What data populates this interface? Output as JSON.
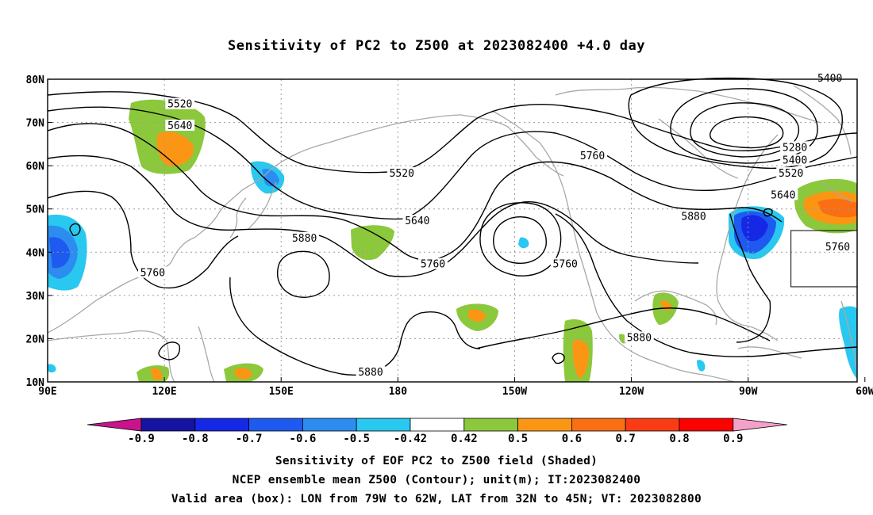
{
  "title": "Sensitivity of PC2 to Z500 at 2023082400 +4.0 day",
  "map": {
    "lon_range": [
      90,
      298
    ],
    "lat_range": [
      10,
      80
    ],
    "lat_labels": [
      "10N",
      "20N",
      "30N",
      "40N",
      "50N",
      "60N",
      "70N",
      "80N"
    ],
    "lon_labels": [
      "90E",
      "120E",
      "150E",
      "180",
      "150W",
      "120W",
      "90W",
      "60W"
    ],
    "contour_labels": [
      {
        "text": "5520",
        "lon": 124,
        "lat": 74
      },
      {
        "text": "5640",
        "lon": 124,
        "lat": 69
      },
      {
        "text": "5520",
        "lon": 181,
        "lat": 58
      },
      {
        "text": "5760",
        "lon": 230,
        "lat": 62
      },
      {
        "text": "5640",
        "lon": 185,
        "lat": 47
      },
      {
        "text": "5880",
        "lon": 156,
        "lat": 43
      },
      {
        "text": "5760",
        "lon": 189,
        "lat": 37
      },
      {
        "text": "5760",
        "lon": 223,
        "lat": 37
      },
      {
        "text": "5880",
        "lon": 256,
        "lat": 48
      },
      {
        "text": "5760",
        "lon": 117,
        "lat": 35
      },
      {
        "text": "5880",
        "lon": 173,
        "lat": 12
      },
      {
        "text": "5880",
        "lon": 242,
        "lat": 20
      },
      {
        "text": "5280",
        "lon": 282,
        "lat": 64
      },
      {
        "text": "5400",
        "lon": 282,
        "lat": 61
      },
      {
        "text": "5520",
        "lon": 281,
        "lat": 58
      },
      {
        "text": "5640",
        "lon": 279,
        "lat": 53
      },
      {
        "text": "5760",
        "lon": 293,
        "lat": 41
      },
      {
        "text": "5400",
        "lon": 291,
        "lat": 80
      }
    ],
    "valid_box": {
      "lon": [
        281,
        298
      ],
      "lat": [
        32,
        45
      ]
    }
  },
  "colorbar": {
    "labels": [
      "-0.9",
      "-0.8",
      "-0.7",
      "-0.6",
      "-0.5",
      "-0.42",
      "0.42",
      "0.5",
      "0.6",
      "0.7",
      "0.8",
      "0.9"
    ],
    "colors": [
      "#1414a0",
      "#1428e6",
      "#1e5af0",
      "#2d8cf0",
      "#28c8f0",
      "#ffffff",
      "#8cc83c",
      "#fa9614",
      "#fa6e14",
      "#fa3c14",
      "#ff0000"
    ],
    "low_color": "#c8148c",
    "high_color": "#f5a0c8"
  },
  "captions": [
    "Sensitivity of EOF PC2 to Z500 field (Shaded)",
    "NCEP ensemble mean Z500 (Contour); unit(m); IT:2023082400",
    "Valid area (box): LON from 79W to 62W, LAT from 32N to 45N; VT: 2023082800"
  ]
}
